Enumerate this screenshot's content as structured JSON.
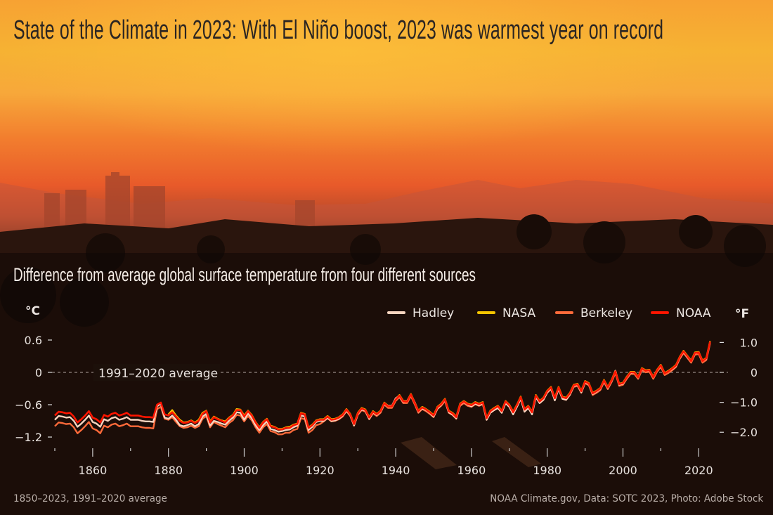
{
  "title": "State of the Climate in 2023: With El Niño boost, 2023 was warmest year on record",
  "subtitle": "Difference from average global surface temperature from four different sources",
  "footer": {
    "left": "1850–2023, 1991–2020 average",
    "right": "NOAA Climate.gov, Data: SOTC 2023, Photo: Adobe Stock"
  },
  "chart_data": {
    "type": "line",
    "title": "",
    "xlabel": "",
    "ylabel": "°C",
    "y2label": "°F",
    "x_range": [
      1850,
      2023
    ],
    "ylim": [
      -1.2,
      0.6
    ],
    "x_ticks": [
      "1860",
      "1880",
      "1900",
      "1920",
      "1940",
      "1960",
      "1980",
      "2000",
      "2020"
    ],
    "y_ticks": [
      "0.6",
      "0",
      "−0.6",
      "−1.2"
    ],
    "y_tick_values": [
      0.6,
      0,
      -0.6,
      -1.2
    ],
    "y2_ticks": [
      "1.0",
      "0",
      "−1.0",
      "−2.0"
    ],
    "y2_tick_values": [
      1.0,
      0,
      -1.0,
      -2.0
    ],
    "reference_line": {
      "value": 0,
      "label": "1991–2020 average"
    },
    "grid": false,
    "legend_position": "top-right",
    "series": [
      {
        "name": "Hadley",
        "color": "#f7d4bf",
        "start_year": 1850,
        "values": [
          -0.88,
          -0.81,
          -0.82,
          -0.84,
          -0.83,
          -0.9,
          -1.01,
          -0.95,
          -0.88,
          -0.8,
          -0.92,
          -0.95,
          -1.01,
          -0.87,
          -0.9,
          -0.85,
          -0.83,
          -0.88,
          -0.86,
          -0.83,
          -0.88,
          -0.88,
          -0.88,
          -0.9,
          -0.91,
          -0.91,
          -0.92,
          -0.63,
          -0.58,
          -0.84,
          -0.86,
          -0.8,
          -0.88,
          -0.98,
          -1.0,
          -0.98,
          -0.95,
          -1.0,
          -0.96,
          -0.82,
          -0.77,
          -0.99,
          -0.9,
          -0.92,
          -0.95,
          -0.97,
          -0.9,
          -0.84,
          -0.74,
          -0.75,
          -0.88,
          -0.76,
          -0.85,
          -0.98,
          -1.07,
          -0.98,
          -0.91,
          -1.05,
          -1.07,
          -1.1,
          -1.09,
          -1.07,
          -1.06,
          -1.02,
          -0.99,
          -0.8,
          -0.82,
          -1.07,
          -1.01,
          -0.92,
          -0.9,
          -0.9,
          -0.84,
          -0.9,
          -0.89,
          -0.86,
          -0.8,
          -0.71,
          -0.79,
          -0.98,
          -0.77,
          -0.69,
          -0.71,
          -0.86,
          -0.74,
          -0.79,
          -0.73,
          -0.58,
          -0.62,
          -0.62,
          -0.48,
          -0.44,
          -0.55,
          -0.53,
          -0.42,
          -0.55,
          -0.73,
          -0.67,
          -0.7,
          -0.75,
          -0.82,
          -0.67,
          -0.6,
          -0.51,
          -0.74,
          -0.78,
          -0.85,
          -0.6,
          -0.55,
          -0.6,
          -0.63,
          -0.58,
          -0.61,
          -0.58,
          -0.88,
          -0.75,
          -0.7,
          -0.66,
          -0.75,
          -0.57,
          -0.64,
          -0.78,
          -0.64,
          -0.49,
          -0.73,
          -0.66,
          -0.78,
          -0.46,
          -0.57,
          -0.51,
          -0.37,
          -0.3,
          -0.52,
          -0.3,
          -0.49,
          -0.51,
          -0.41,
          -0.25,
          -0.23,
          -0.37,
          -0.18,
          -0.22,
          -0.4,
          -0.36,
          -0.31,
          -0.16,
          -0.29,
          -0.16,
          0.03,
          -0.23,
          -0.21,
          -0.09,
          -0.01,
          0.0,
          -0.09,
          0.06,
          0.03,
          0.03,
          -0.09,
          0.04,
          0.12,
          -0.02,
          0.02,
          0.06,
          0.12,
          0.27,
          0.38,
          0.29,
          0.21,
          0.35,
          0.37,
          0.21,
          0.25,
          0.56
        ]
      },
      {
        "name": "NASA",
        "color": "#f5c400",
        "start_year": 1880,
        "values": [
          -0.78,
          -0.7,
          -0.8,
          -0.88,
          -0.93,
          -0.92,
          -0.89,
          -0.93,
          -0.88,
          -0.75,
          -0.71,
          -0.91,
          -0.82,
          -0.86,
          -0.89,
          -0.91,
          -0.84,
          -0.79,
          -0.68,
          -0.69,
          -0.8,
          -0.71,
          -0.79,
          -0.92,
          -1.02,
          -0.92,
          -0.86,
          -0.99,
          -1.01,
          -1.05,
          -1.05,
          -1.02,
          -1.01,
          -0.97,
          -0.95,
          -0.75,
          -0.77,
          -1.02,
          -0.97,
          -0.89,
          -0.87,
          -0.87,
          -0.81,
          -0.87,
          -0.86,
          -0.83,
          -0.78,
          -0.68,
          -0.77,
          -0.95,
          -0.75,
          -0.66,
          -0.69,
          -0.83,
          -0.72,
          -0.77,
          -0.71,
          -0.56,
          -0.62,
          -0.62,
          -0.49,
          -0.42,
          -0.53,
          -0.53,
          -0.4,
          -0.55,
          -0.71,
          -0.64,
          -0.68,
          -0.73,
          -0.79,
          -0.64,
          -0.58,
          -0.49,
          -0.71,
          -0.75,
          -0.82,
          -0.58,
          -0.53,
          -0.58,
          -0.6,
          -0.55,
          -0.58,
          -0.55,
          -0.84,
          -0.71,
          -0.66,
          -0.62,
          -0.71,
          -0.53,
          -0.6,
          -0.73,
          -0.6,
          -0.45,
          -0.68,
          -0.62,
          -0.73,
          -0.42,
          -0.53,
          -0.47,
          -0.34,
          -0.27,
          -0.47,
          -0.27,
          -0.45,
          -0.47,
          -0.38,
          -0.23,
          -0.21,
          -0.34,
          -0.16,
          -0.2,
          -0.38,
          -0.34,
          -0.29,
          -0.14,
          -0.27,
          -0.14,
          0.03,
          -0.21,
          -0.19,
          -0.08,
          0.01,
          0.01,
          -0.08,
          0.08,
          0.04,
          0.05,
          -0.08,
          0.05,
          0.14,
          -0.01,
          0.03,
          0.08,
          0.14,
          0.29,
          0.4,
          0.31,
          0.22,
          0.37,
          0.38,
          0.22,
          0.27,
          0.58
        ]
      },
      {
        "name": "Berkeley",
        "color": "#ff6a3a",
        "start_year": 1850,
        "values": [
          -1.0,
          -0.93,
          -0.94,
          -0.96,
          -0.95,
          -1.02,
          -1.13,
          -1.07,
          -1.0,
          -0.92,
          -1.04,
          -1.07,
          -1.13,
          -0.99,
          -1.02,
          -0.97,
          -0.95,
          -1.0,
          -0.98,
          -0.95,
          -1.0,
          -1.0,
          -1.0,
          -1.02,
          -1.03,
          -1.03,
          -1.04,
          -0.68,
          -0.64,
          -0.86,
          -0.88,
          -0.83,
          -0.92,
          -1.0,
          -1.03,
          -1.02,
          -0.99,
          -1.03,
          -1.0,
          -0.86,
          -0.81,
          -1.02,
          -0.92,
          -0.96,
          -0.99,
          -1.02,
          -0.94,
          -0.89,
          -0.79,
          -0.8,
          -0.91,
          -0.81,
          -0.89,
          -1.02,
          -1.12,
          -1.02,
          -0.96,
          -1.09,
          -1.11,
          -1.15,
          -1.15,
          -1.12,
          -1.12,
          -1.07,
          -1.05,
          -0.85,
          -0.87,
          -1.12,
          -1.07,
          -0.98,
          -0.96,
          -0.91,
          -0.85,
          -0.91,
          -0.9,
          -0.87,
          -0.82,
          -0.72,
          -0.81,
          -0.99,
          -0.79,
          -0.7,
          -0.73,
          -0.87,
          -0.76,
          -0.81,
          -0.75,
          -0.6,
          -0.66,
          -0.66,
          -0.53,
          -0.46,
          -0.57,
          -0.57,
          -0.44,
          -0.59,
          -0.75,
          -0.68,
          -0.72,
          -0.77,
          -0.83,
          -0.68,
          -0.62,
          -0.53,
          -0.75,
          -0.79,
          -0.86,
          -0.62,
          -0.57,
          -0.62,
          -0.64,
          -0.59,
          -0.62,
          -0.59,
          -0.88,
          -0.75,
          -0.7,
          -0.66,
          -0.75,
          -0.57,
          -0.64,
          -0.77,
          -0.64,
          -0.49,
          -0.72,
          -0.66,
          -0.77,
          -0.46,
          -0.57,
          -0.51,
          -0.38,
          -0.31,
          -0.51,
          -0.31,
          -0.49,
          -0.51,
          -0.42,
          -0.27,
          -0.25,
          -0.38,
          -0.2,
          -0.24,
          -0.42,
          -0.38,
          -0.33,
          -0.18,
          -0.31,
          -0.18,
          -0.01,
          -0.25,
          -0.23,
          -0.12,
          -0.03,
          -0.03,
          -0.12,
          0.04,
          0.0,
          0.01,
          -0.12,
          0.01,
          0.1,
          -0.05,
          -0.01,
          0.04,
          0.1,
          0.25,
          0.36,
          0.27,
          0.18,
          0.33,
          0.34,
          0.18,
          0.23,
          0.54
        ]
      },
      {
        "name": "NOAA",
        "color": "#ff1500",
        "start_year": 1850,
        "values": [
          -0.8,
          -0.73,
          -0.74,
          -0.76,
          -0.75,
          -0.82,
          -0.93,
          -0.87,
          -0.8,
          -0.72,
          -0.84,
          -0.87,
          -0.93,
          -0.79,
          -0.82,
          -0.77,
          -0.75,
          -0.8,
          -0.78,
          -0.75,
          -0.8,
          -0.8,
          -0.8,
          -0.82,
          -0.83,
          -0.83,
          -0.84,
          -0.6,
          -0.56,
          -0.78,
          -0.8,
          -0.74,
          -0.82,
          -0.9,
          -0.94,
          -0.93,
          -0.9,
          -0.94,
          -0.9,
          -0.77,
          -0.72,
          -0.93,
          -0.83,
          -0.87,
          -0.9,
          -0.93,
          -0.85,
          -0.8,
          -0.7,
          -0.7,
          -0.82,
          -0.72,
          -0.8,
          -0.93,
          -1.03,
          -0.93,
          -0.87,
          -1.0,
          -1.02,
          -1.06,
          -1.06,
          -1.03,
          -1.03,
          -0.98,
          -0.96,
          -0.76,
          -0.78,
          -1.03,
          -0.98,
          -0.9,
          -0.88,
          -0.88,
          -0.82,
          -0.88,
          -0.87,
          -0.84,
          -0.79,
          -0.69,
          -0.78,
          -0.96,
          -0.76,
          -0.67,
          -0.7,
          -0.84,
          -0.73,
          -0.78,
          -0.72,
          -0.57,
          -0.63,
          -0.63,
          -0.5,
          -0.43,
          -0.54,
          -0.54,
          -0.41,
          -0.56,
          -0.72,
          -0.65,
          -0.69,
          -0.74,
          -0.8,
          -0.65,
          -0.59,
          -0.5,
          -0.72,
          -0.76,
          -0.83,
          -0.59,
          -0.54,
          -0.59,
          -0.61,
          -0.56,
          -0.59,
          -0.56,
          -0.85,
          -0.72,
          -0.67,
          -0.63,
          -0.72,
          -0.54,
          -0.61,
          -0.74,
          -0.61,
          -0.46,
          -0.69,
          -0.63,
          -0.74,
          -0.43,
          -0.54,
          -0.48,
          -0.35,
          -0.28,
          -0.48,
          -0.28,
          -0.46,
          -0.48,
          -0.39,
          -0.24,
          -0.22,
          -0.35,
          -0.17,
          -0.21,
          -0.39,
          -0.35,
          -0.3,
          -0.15,
          -0.28,
          -0.15,
          0.02,
          -0.22,
          -0.2,
          -0.09,
          0.0,
          0.0,
          -0.09,
          0.07,
          0.03,
          0.04,
          -0.09,
          0.04,
          0.13,
          -0.02,
          0.02,
          0.07,
          0.13,
          0.28,
          0.39,
          0.3,
          0.21,
          0.36,
          0.37,
          0.21,
          0.26,
          0.57
        ]
      }
    ]
  }
}
